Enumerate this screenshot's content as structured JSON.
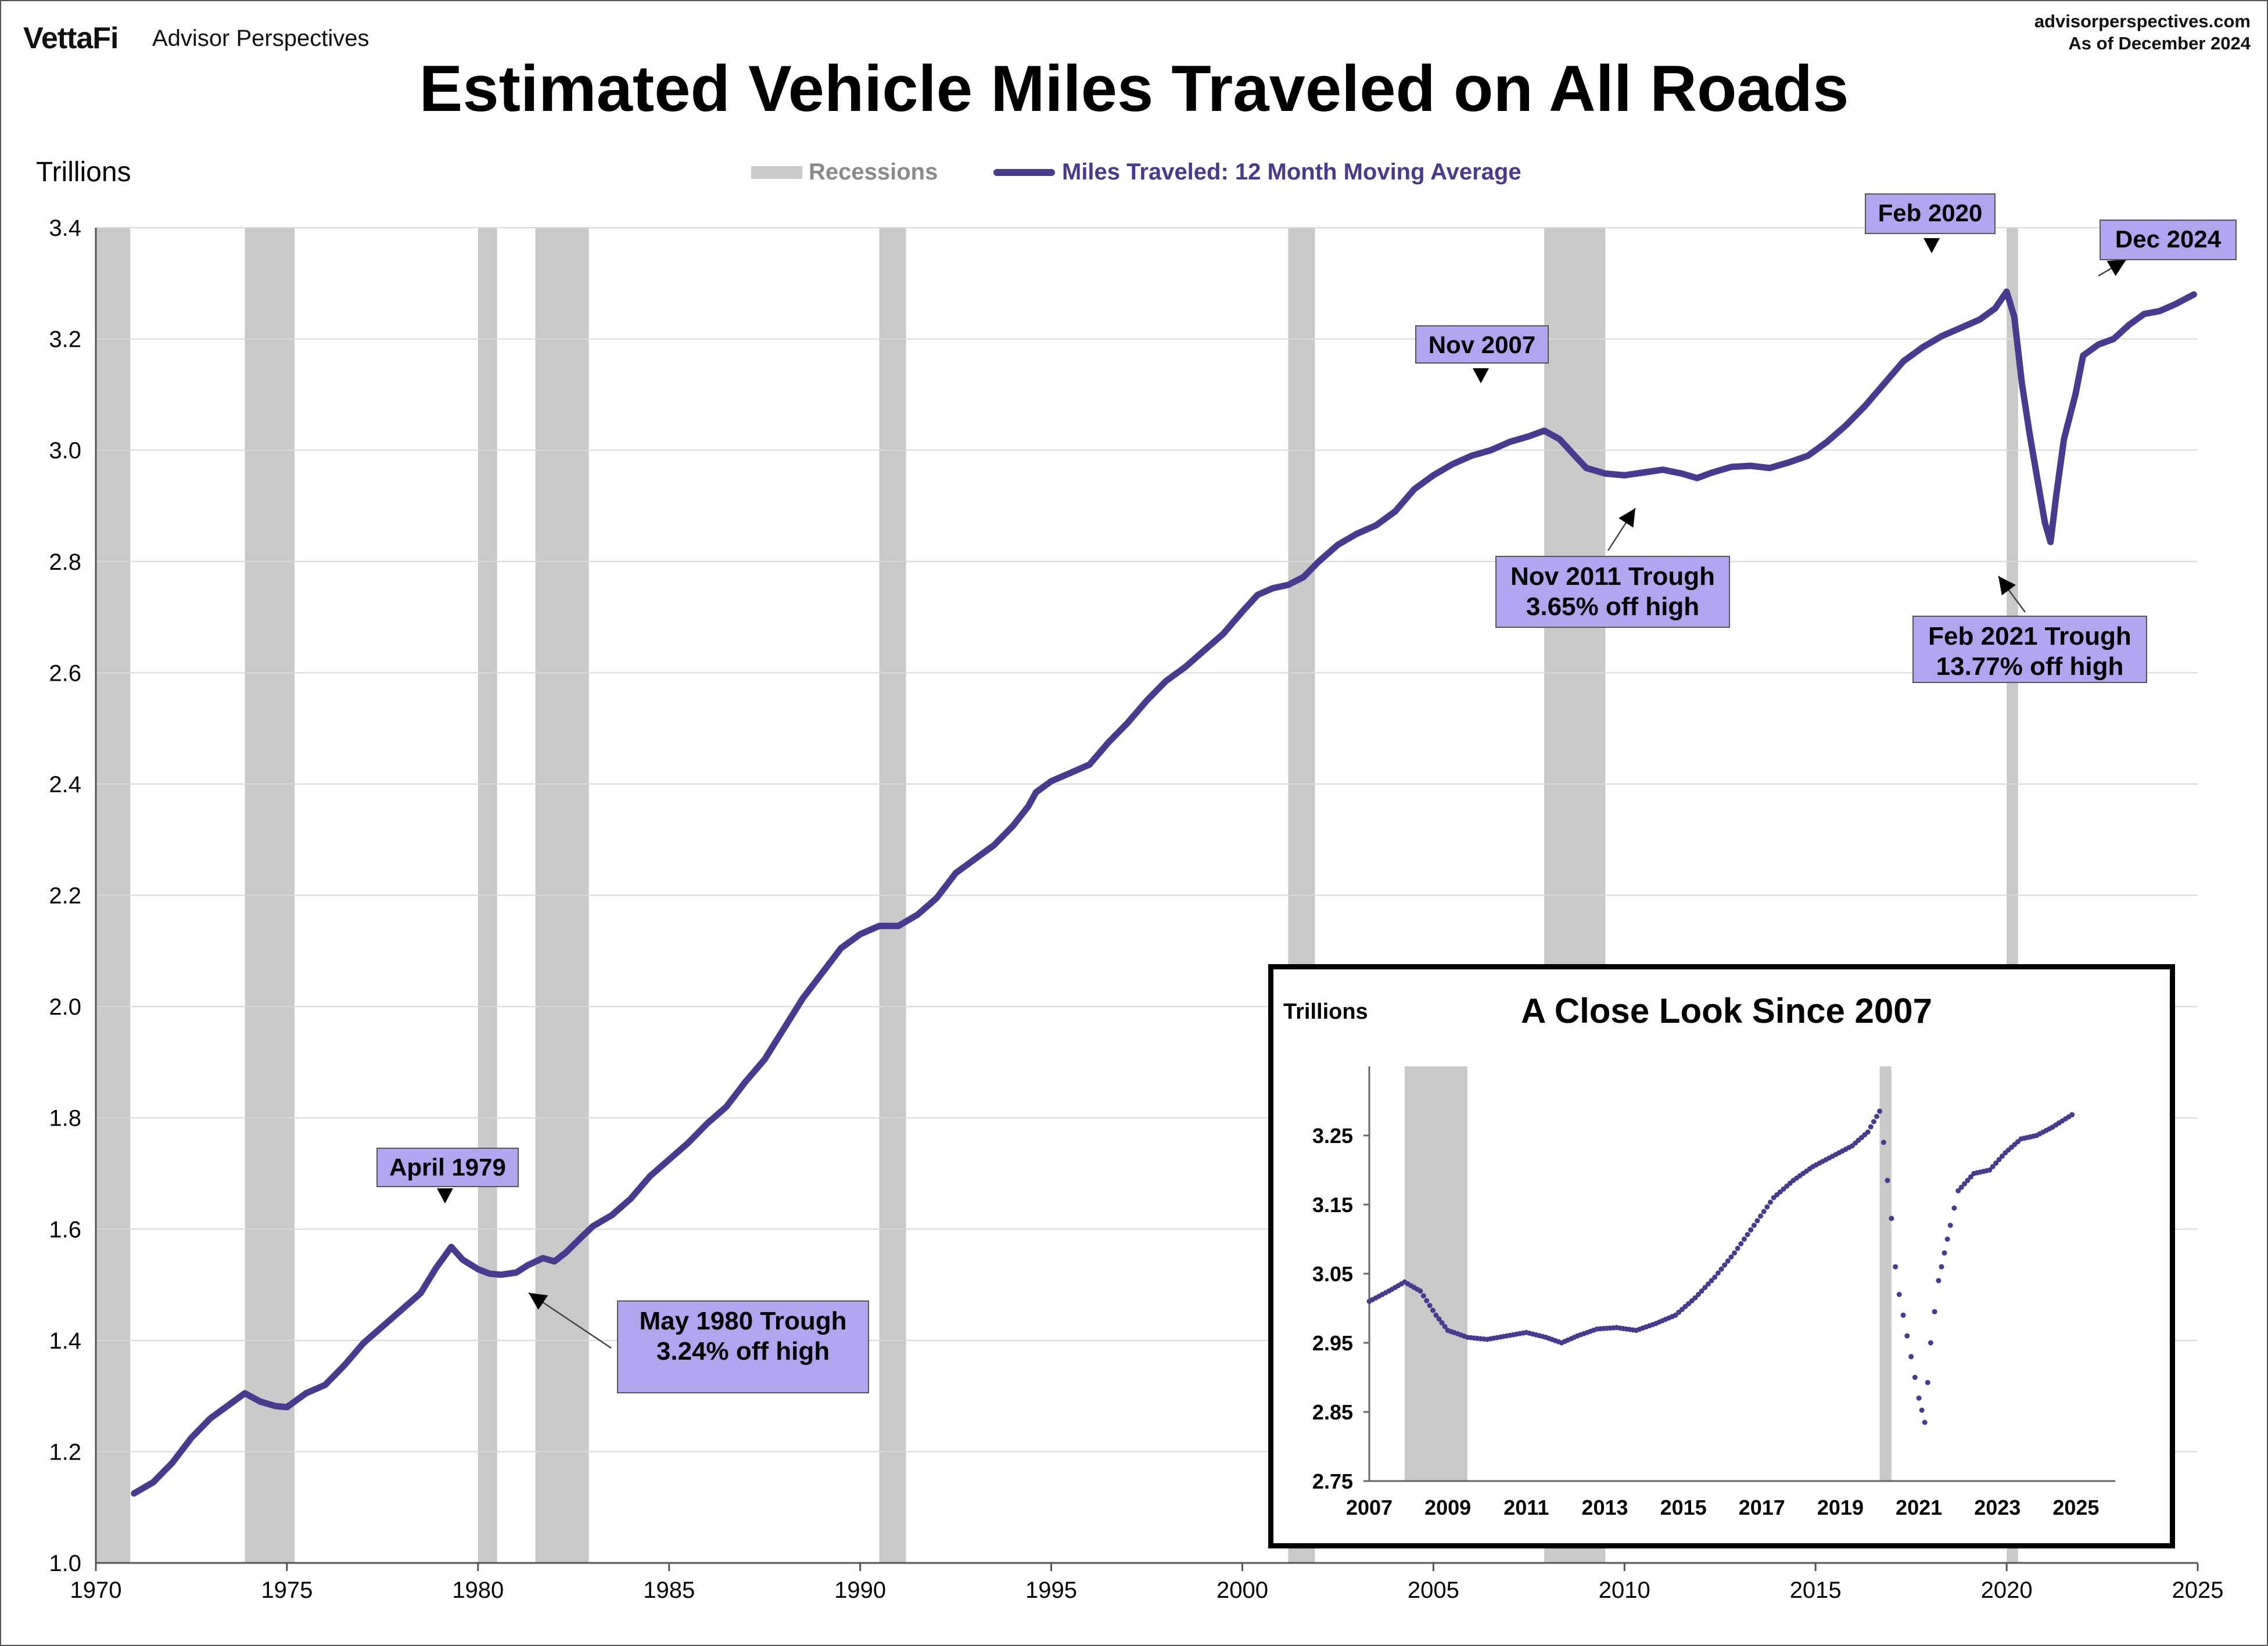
{
  "header": {
    "logo": "VettaFi",
    "brand": "Advisor Perspectives",
    "site": "advisorperspectives.com",
    "as_of": "As of December 2024"
  },
  "chart_data": [
    {
      "type": "line",
      "title": "Estimated Vehicle Miles Traveled on All Roads",
      "ylabel": "Trillions",
      "xlabel": "",
      "xlim": [
        1970,
        2025
      ],
      "ylim": [
        1.0,
        3.4
      ],
      "x_ticks": [
        "1970",
        "1975",
        "1980",
        "1985",
        "1990",
        "1995",
        "2000",
        "2005",
        "2010",
        "2015",
        "2020",
        "2025"
      ],
      "y_ticks": [
        "1.0",
        "1.2",
        "1.4",
        "1.6",
        "1.8",
        "2.0",
        "2.2",
        "2.4",
        "2.6",
        "2.8",
        "3.0",
        "3.2",
        "3.4"
      ],
      "grid": true,
      "legend_position": "top-center",
      "legend": {
        "recessions": "Recessions",
        "series": "Miles Traveled: 12 Month Moving Average"
      },
      "colors": {
        "series": "#483a8e",
        "recession": "#c9c9c9",
        "annotation": "#b3a4f0"
      },
      "recessions": [
        [
          1970.0,
          1970.9
        ],
        [
          1973.9,
          1975.2
        ],
        [
          1980.0,
          1980.5
        ],
        [
          1981.5,
          1982.9
        ],
        [
          1990.5,
          1991.2
        ],
        [
          2001.2,
          2001.9
        ],
        [
          2007.9,
          2009.5
        ],
        [
          2020.0,
          2020.3
        ]
      ],
      "series": [
        {
          "values": [
            [
              1971.0,
              1.125
            ],
            [
              1971.5,
              1.145
            ],
            [
              1972.0,
              1.18
            ],
            [
              1972.5,
              1.225
            ],
            [
              1973.0,
              1.26
            ],
            [
              1973.5,
              1.285
            ],
            [
              1973.9,
              1.305
            ],
            [
              1974.3,
              1.29
            ],
            [
              1974.7,
              1.282
            ],
            [
              1975.0,
              1.28
            ],
            [
              1975.5,
              1.305
            ],
            [
              1976.0,
              1.32
            ],
            [
              1976.5,
              1.355
            ],
            [
              1977.0,
              1.395
            ],
            [
              1977.5,
              1.425
            ],
            [
              1978.0,
              1.455
            ],
            [
              1978.5,
              1.485
            ],
            [
              1978.9,
              1.53
            ],
            [
              1979.3,
              1.568
            ],
            [
              1979.6,
              1.545
            ],
            [
              1980.0,
              1.528
            ],
            [
              1980.3,
              1.52
            ],
            [
              1980.6,
              1.518
            ],
            [
              1981.0,
              1.522
            ],
            [
              1981.3,
              1.535
            ],
            [
              1981.7,
              1.548
            ],
            [
              1982.0,
              1.542
            ],
            [
              1982.3,
              1.558
            ],
            [
              1982.7,
              1.585
            ],
            [
              1983.0,
              1.605
            ],
            [
              1983.5,
              1.625
            ],
            [
              1984.0,
              1.655
            ],
            [
              1984.5,
              1.695
            ],
            [
              1985.0,
              1.725
            ],
            [
              1985.5,
              1.755
            ],
            [
              1986.0,
              1.79
            ],
            [
              1986.5,
              1.82
            ],
            [
              1987.0,
              1.865
            ],
            [
              1987.5,
              1.905
            ],
            [
              1988.0,
              1.96
            ],
            [
              1988.5,
              2.015
            ],
            [
              1989.0,
              2.06
            ],
            [
              1989.5,
              2.105
            ],
            [
              1990.0,
              2.13
            ],
            [
              1990.5,
              2.145
            ],
            [
              1991.0,
              2.145
            ],
            [
              1991.5,
              2.165
            ],
            [
              1992.0,
              2.195
            ],
            [
              1992.5,
              2.24
            ],
            [
              1993.0,
              2.265
            ],
            [
              1993.5,
              2.29
            ],
            [
              1994.0,
              2.325
            ],
            [
              1994.4,
              2.36
            ],
            [
              1994.6,
              2.385
            ],
            [
              1995.0,
              2.405
            ],
            [
              1995.5,
              2.42
            ],
            [
              1996.0,
              2.435
            ],
            [
              1996.5,
              2.475
            ],
            [
              1997.0,
              2.51
            ],
            [
              1997.5,
              2.55
            ],
            [
              1998.0,
              2.585
            ],
            [
              1998.5,
              2.61
            ],
            [
              1999.0,
              2.64
            ],
            [
              1999.5,
              2.67
            ],
            [
              2000.0,
              2.71
            ],
            [
              2000.4,
              2.74
            ],
            [
              2000.8,
              2.752
            ],
            [
              2001.2,
              2.758
            ],
            [
              2001.6,
              2.772
            ],
            [
              2002.0,
              2.8
            ],
            [
              2002.5,
              2.83
            ],
            [
              2003.0,
              2.85
            ],
            [
              2003.5,
              2.865
            ],
            [
              2004.0,
              2.89
            ],
            [
              2004.5,
              2.93
            ],
            [
              2005.0,
              2.955
            ],
            [
              2005.5,
              2.975
            ],
            [
              2006.0,
              2.99
            ],
            [
              2006.5,
              3.0
            ],
            [
              2007.0,
              3.015
            ],
            [
              2007.5,
              3.025
            ],
            [
              2007.9,
              3.035
            ],
            [
              2008.3,
              3.02
            ],
            [
              2008.7,
              2.99
            ],
            [
              2009.0,
              2.968
            ],
            [
              2009.5,
              2.958
            ],
            [
              2010.0,
              2.955
            ],
            [
              2010.5,
              2.96
            ],
            [
              2011.0,
              2.965
            ],
            [
              2011.5,
              2.958
            ],
            [
              2011.9,
              2.95
            ],
            [
              2012.3,
              2.96
            ],
            [
              2012.8,
              2.97
            ],
            [
              2013.3,
              2.972
            ],
            [
              2013.8,
              2.968
            ],
            [
              2014.3,
              2.978
            ],
            [
              2014.8,
              2.99
            ],
            [
              2015.3,
              3.015
            ],
            [
              2015.8,
              3.045
            ],
            [
              2016.3,
              3.08
            ],
            [
              2016.8,
              3.12
            ],
            [
              2017.3,
              3.16
            ],
            [
              2017.8,
              3.185
            ],
            [
              2018.3,
              3.205
            ],
            [
              2018.8,
              3.22
            ],
            [
              2019.3,
              3.235
            ],
            [
              2019.7,
              3.255
            ],
            [
              2020.0,
              3.285
            ],
            [
              2020.2,
              3.24
            ],
            [
              2020.4,
              3.12
            ],
            [
              2020.6,
              3.03
            ],
            [
              2020.8,
              2.95
            ],
            [
              2021.0,
              2.87
            ],
            [
              2021.15,
              2.835
            ],
            [
              2021.3,
              2.92
            ],
            [
              2021.5,
              3.02
            ],
            [
              2021.8,
              3.1
            ],
            [
              2022.0,
              3.17
            ],
            [
              2022.4,
              3.19
            ],
            [
              2022.8,
              3.2
            ],
            [
              2023.2,
              3.225
            ],
            [
              2023.6,
              3.245
            ],
            [
              2024.0,
              3.25
            ],
            [
              2024.4,
              3.262
            ],
            [
              2024.9,
              3.28
            ]
          ]
        }
      ],
      "annotations": [
        {
          "lines": [
            "April 1979"
          ]
        },
        {
          "lines": [
            "May 1980 Trough",
            "3.24% off high"
          ]
        },
        {
          "lines": [
            "Nov 2007"
          ]
        },
        {
          "lines": [
            "Nov 2011 Trough",
            "3.65% off high"
          ]
        },
        {
          "lines": [
            "Feb 2020"
          ]
        },
        {
          "lines": [
            "Feb 2021 Trough",
            "13.77% off high"
          ]
        },
        {
          "lines": [
            "Dec 2024"
          ]
        }
      ]
    },
    {
      "type": "scatter",
      "title": "A Close Look Since 2007",
      "ylabel": "Trillions",
      "xlim": [
        2007,
        2026
      ],
      "ylim": [
        2.75,
        3.35
      ],
      "x_ticks": [
        "2007",
        "2009",
        "2011",
        "2013",
        "2015",
        "2017",
        "2019",
        "2021",
        "2023",
        "2025"
      ],
      "y_ticks": [
        "2.75",
        "2.85",
        "2.95",
        "3.05",
        "3.15",
        "3.25"
      ],
      "grid": false,
      "colors": {
        "series": "#483a8e",
        "recession": "#c9c9c9"
      },
      "recessions": [
        [
          2007.9,
          2009.5
        ],
        [
          2020.0,
          2020.3
        ]
      ],
      "series": [
        {
          "values": [
            [
              2007.0,
              3.01
            ],
            [
              2007.5,
              3.025
            ],
            [
              2007.9,
              3.038
            ],
            [
              2008.3,
              3.025
            ],
            [
              2008.7,
              2.99
            ],
            [
              2009.0,
              2.968
            ],
            [
              2009.5,
              2.958
            ],
            [
              2010.0,
              2.955
            ],
            [
              2010.5,
              2.96
            ],
            [
              2011.0,
              2.965
            ],
            [
              2011.5,
              2.958
            ],
            [
              2011.9,
              2.95
            ],
            [
              2012.3,
              2.96
            ],
            [
              2012.8,
              2.97
            ],
            [
              2013.3,
              2.972
            ],
            [
              2013.8,
              2.968
            ],
            [
              2014.3,
              2.978
            ],
            [
              2014.8,
              2.99
            ],
            [
              2015.3,
              3.015
            ],
            [
              2015.8,
              3.045
            ],
            [
              2016.3,
              3.08
            ],
            [
              2016.8,
              3.12
            ],
            [
              2017.3,
              3.16
            ],
            [
              2017.8,
              3.185
            ],
            [
              2018.3,
              3.205
            ],
            [
              2018.8,
              3.22
            ],
            [
              2019.3,
              3.235
            ],
            [
              2019.7,
              3.255
            ],
            [
              2020.0,
              3.285
            ],
            [
              2020.1,
              3.24
            ],
            [
              2020.3,
              3.13
            ],
            [
              2020.4,
              3.06
            ],
            [
              2020.5,
              3.02
            ],
            [
              2020.7,
              2.96
            ],
            [
              2020.9,
              2.9
            ],
            [
              2021.0,
              2.87
            ],
            [
              2021.15,
              2.835
            ],
            [
              2021.3,
              2.95
            ],
            [
              2021.5,
              3.04
            ],
            [
              2021.8,
              3.12
            ],
            [
              2022.0,
              3.17
            ],
            [
              2022.4,
              3.195
            ],
            [
              2022.8,
              3.2
            ],
            [
              2023.2,
              3.225
            ],
            [
              2023.6,
              3.245
            ],
            [
              2024.0,
              3.25
            ],
            [
              2024.4,
              3.262
            ],
            [
              2024.9,
              3.28
            ]
          ]
        }
      ]
    }
  ]
}
